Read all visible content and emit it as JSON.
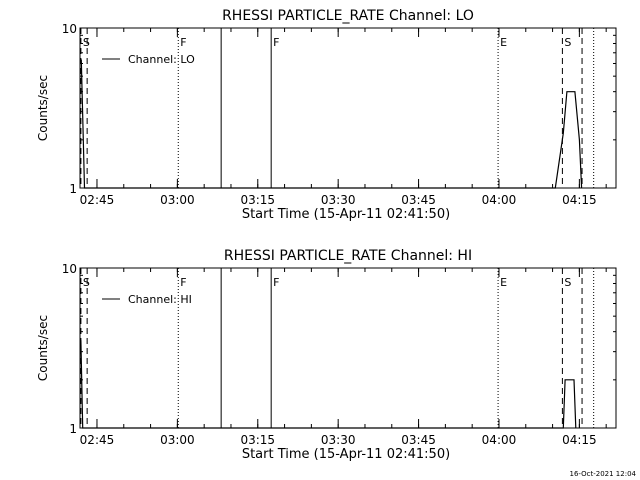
{
  "footer": {
    "timestamp": "16-Oct-2021 12:04"
  },
  "chart_data": [
    {
      "type": "line",
      "title": "RHESSI PARTICLE_RATE Channel: LO",
      "xlabel": "Start Time (15-Apr-11 02:41:50)",
      "ylabel": "Counts/sec",
      "y_scale": "log",
      "ylim": [
        1,
        10
      ],
      "y_ticks": [
        "1",
        "10"
      ],
      "xlim": [
        "02:41:50",
        "04:21:50"
      ],
      "x_ticks": [
        "02:45",
        "03:00",
        "03:15",
        "03:30",
        "03:45",
        "04:00",
        "04:15"
      ],
      "legend": {
        "label": "Channel: LO",
        "position": "top-left"
      },
      "series": [
        {
          "name": "Channel: LO",
          "points": [
            [
              "02:41:50",
              6.3
            ],
            [
              "02:42:05",
              6.3
            ],
            [
              "02:42:40",
              1
            ],
            [
              "04:10:30",
              1
            ],
            [
              "04:12:00",
              2.2
            ],
            [
              "04:12:40",
              4.0
            ],
            [
              "04:14:10",
              4.0
            ],
            [
              "04:15:00",
              2.0
            ],
            [
              "04:15:25",
              1
            ]
          ]
        }
      ],
      "markers": [
        {
          "time": "02:42:00",
          "style": "dashed",
          "label": "S"
        },
        {
          "time": "02:43:10",
          "style": "dashed",
          "label": ""
        },
        {
          "time": "03:00:10",
          "style": "dotted",
          "label": "F"
        },
        {
          "time": "03:08:10",
          "style": "solid",
          "label": ""
        },
        {
          "time": "03:17:30",
          "style": "solid",
          "label": "F"
        },
        {
          "time": "03:59:50",
          "style": "dotted",
          "label": "E"
        },
        {
          "time": "04:11:50",
          "style": "dashed",
          "label": "S"
        },
        {
          "time": "04:15:30",
          "style": "dashed",
          "label": ""
        },
        {
          "time": "04:17:40",
          "style": "dotted",
          "label": ""
        }
      ]
    },
    {
      "type": "line",
      "title": "RHESSI PARTICLE_RATE Channel: HI",
      "xlabel": "Start Time (15-Apr-11 02:41:50)",
      "ylabel": "Counts/sec",
      "y_scale": "log",
      "ylim": [
        1,
        10
      ],
      "y_ticks": [
        "1",
        "10"
      ],
      "xlim": [
        "02:41:50",
        "04:21:50"
      ],
      "x_ticks": [
        "02:45",
        "03:00",
        "03:15",
        "03:30",
        "03:45",
        "04:00",
        "04:15"
      ],
      "legend": {
        "label": "Channel: HI",
        "position": "top-left"
      },
      "series": [
        {
          "name": "Channel: HI",
          "points": [
            [
              "02:41:50",
              3.5
            ],
            [
              "02:42:00",
              3.5
            ],
            [
              "02:42:20",
              1
            ],
            [
              "04:12:00",
              1
            ],
            [
              "04:12:20",
              2.0
            ],
            [
              "04:14:00",
              2.0
            ],
            [
              "04:14:20",
              1
            ]
          ]
        }
      ],
      "markers": [
        {
          "time": "02:42:00",
          "style": "dashed",
          "label": "S"
        },
        {
          "time": "02:43:10",
          "style": "dashed",
          "label": ""
        },
        {
          "time": "03:00:10",
          "style": "dotted",
          "label": "F"
        },
        {
          "time": "03:08:10",
          "style": "solid",
          "label": ""
        },
        {
          "time": "03:17:30",
          "style": "solid",
          "label": "F"
        },
        {
          "time": "03:59:50",
          "style": "dotted",
          "label": "E"
        },
        {
          "time": "04:11:50",
          "style": "dashed",
          "label": "S"
        },
        {
          "time": "04:15:30",
          "style": "dashed",
          "label": ""
        },
        {
          "time": "04:17:40",
          "style": "dotted",
          "label": ""
        }
      ]
    }
  ]
}
